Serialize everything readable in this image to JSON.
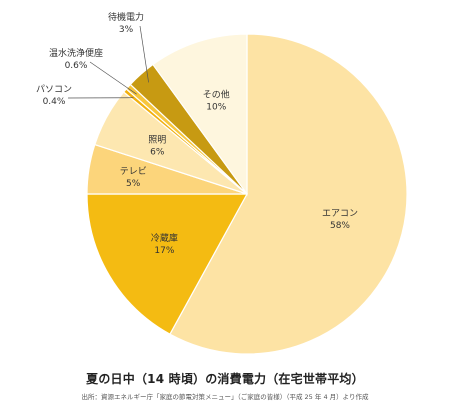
{
  "chart_data": {
    "type": "pie",
    "title": "夏の日中（14 時頃）の消費電力（在宅世帯平均）",
    "source": "出所：資源エネルギー庁「家庭の節電対策メニュー」（ご家庭の皆様）（平成 25 年 4 月）より作成",
    "slices": [
      {
        "label": "エアコン",
        "value": 58,
        "display": "58%",
        "color": "#FDE3A4"
      },
      {
        "label": "冷蔵庫",
        "value": 17,
        "display": "17%",
        "color": "#F4BB12"
      },
      {
        "label": "テレビ",
        "value": 5,
        "display": "5%",
        "color": "#FCD57B"
      },
      {
        "label": "照明",
        "value": 6,
        "display": "6%",
        "color": "#FDE7B0"
      },
      {
        "label": "パソコン",
        "value": 0.4,
        "display": "0.4%",
        "color": "#F2B10F"
      },
      {
        "label": "温水洗浄便座",
        "value": 0.6,
        "display": "0.6%",
        "color": "#F7C63C"
      },
      {
        "label": "待機電力",
        "value": 3,
        "display": "3%",
        "color": "#C79A12"
      },
      {
        "label": "その他",
        "value": 10,
        "display": "10%",
        "color": "#FEF6DE"
      }
    ]
  }
}
